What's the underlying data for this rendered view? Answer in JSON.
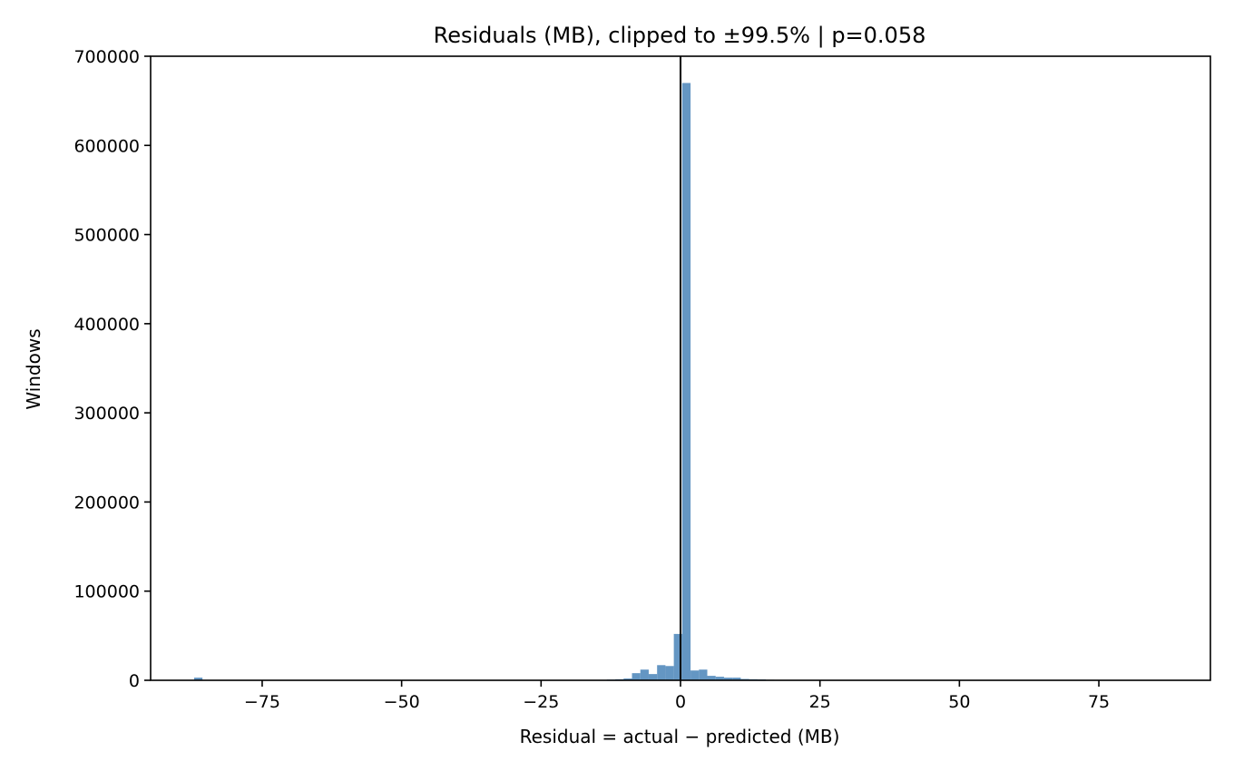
{
  "chart_data": {
    "type": "bar",
    "title": "Residuals (MB), clipped to ±99.5% | p=0.058",
    "xlabel": "Residual = actual − predicted (MB)",
    "ylabel": "Windows",
    "xlim": [
      -95,
      95
    ],
    "ylim": [
      0,
      700000
    ],
    "xticks": [
      -75,
      -50,
      -25,
      0,
      25,
      50,
      75
    ],
    "xtick_labels": [
      "−75",
      "−50",
      "−25",
      "0",
      "25",
      "50",
      "75"
    ],
    "yticks": [
      0,
      100000,
      200000,
      300000,
      400000,
      500000,
      600000,
      700000
    ],
    "ytick_labels": [
      "0",
      "100000",
      "200000",
      "300000",
      "400000",
      "500000",
      "600000",
      "700000"
    ],
    "bar_color": "#4f87bb",
    "vline_x": 0,
    "vline_color": "#000000",
    "grid": false,
    "legend": "none",
    "bins": [
      {
        "x0": -87.2,
        "x1": -85.7,
        "count": 3000
      },
      {
        "x0": -13.2,
        "x1": -11.7,
        "count": 800
      },
      {
        "x0": -11.7,
        "x1": -10.2,
        "count": 1200
      },
      {
        "x0": -10.2,
        "x1": -8.7,
        "count": 2000
      },
      {
        "x0": -8.7,
        "x1": -7.2,
        "count": 8000
      },
      {
        "x0": -7.2,
        "x1": -5.7,
        "count": 12000
      },
      {
        "x0": -5.7,
        "x1": -4.2,
        "count": 7000
      },
      {
        "x0": -4.2,
        "x1": -2.7,
        "count": 17000
      },
      {
        "x0": -2.7,
        "x1": -1.2,
        "count": 16000
      },
      {
        "x0": -1.2,
        "x1": 0.3,
        "count": 52000
      },
      {
        "x0": 0.3,
        "x1": 1.8,
        "count": 670000
      },
      {
        "x0": 1.8,
        "x1": 3.3,
        "count": 11000
      },
      {
        "x0": 3.3,
        "x1": 4.8,
        "count": 12000
      },
      {
        "x0": 4.8,
        "x1": 6.3,
        "count": 5000
      },
      {
        "x0": 6.3,
        "x1": 7.8,
        "count": 4000
      },
      {
        "x0": 7.8,
        "x1": 9.3,
        "count": 3000
      },
      {
        "x0": 9.3,
        "x1": 10.8,
        "count": 3000
      },
      {
        "x0": 10.8,
        "x1": 12.3,
        "count": 1500
      },
      {
        "x0": 12.3,
        "x1": 13.8,
        "count": 1200
      },
      {
        "x0": 13.8,
        "x1": 15.3,
        "count": 1000
      },
      {
        "x0": 15.3,
        "x1": 16.8,
        "count": 600
      }
    ]
  }
}
